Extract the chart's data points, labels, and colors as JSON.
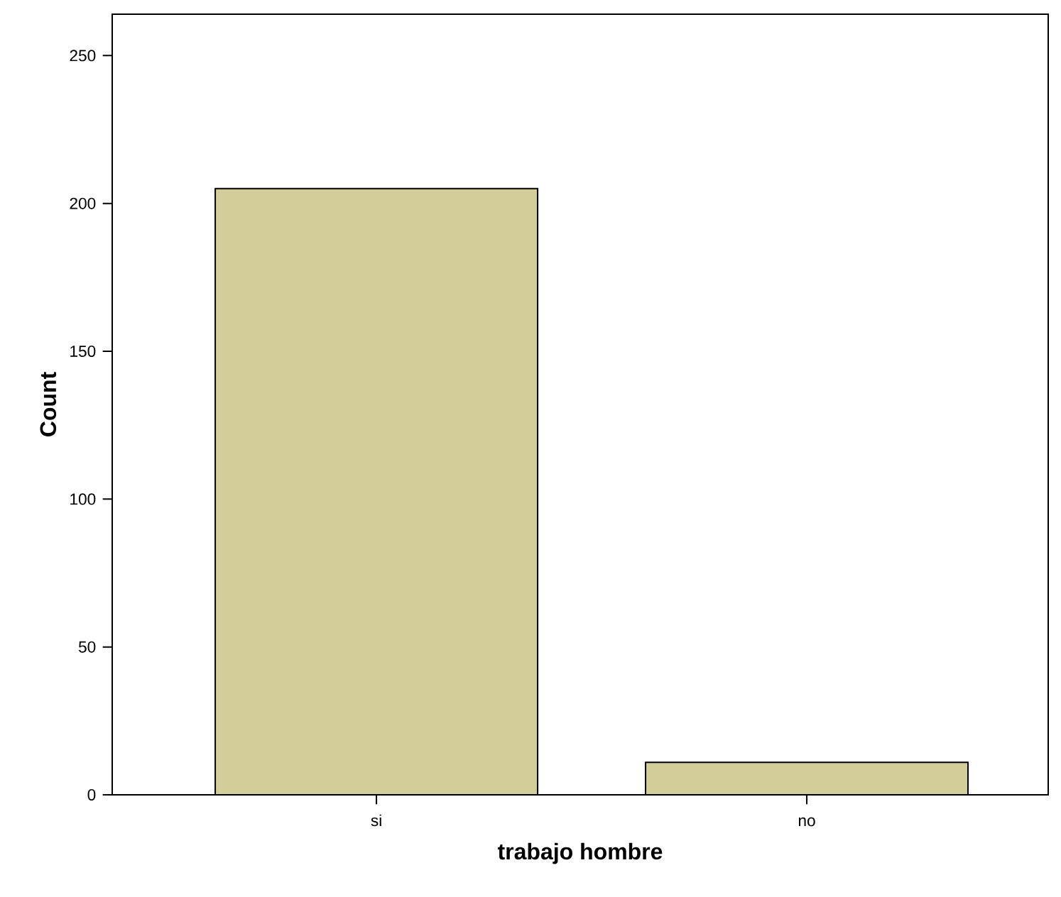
{
  "chart_data": {
    "type": "bar",
    "xlabel": "trabajo hombre",
    "ylabel": "Count",
    "categories": [
      "si",
      "no"
    ],
    "values": [
      205,
      11
    ],
    "color": "#d3cd99",
    "ylim": [
      0,
      264
    ],
    "yticks": [
      0,
      50,
      100,
      150,
      200,
      250
    ]
  }
}
